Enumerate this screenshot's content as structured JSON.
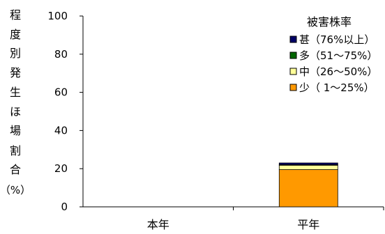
{
  "chart_data": {
    "type": "bar",
    "stacked": true,
    "title": "",
    "xlabel": "",
    "ylabel": "程度別発生ほ場割合（%）",
    "ylabel_chars": [
      "程",
      "度",
      "別",
      "発",
      "生",
      "ほ",
      "場",
      "割",
      "合",
      "（%）"
    ],
    "categories": [
      "本年",
      "平年"
    ],
    "ylim": [
      0,
      100
    ],
    "yticks": [
      0,
      20,
      40,
      60,
      80,
      100
    ],
    "grid": false,
    "legend_position": "top-right",
    "legend_title": "被害株率",
    "series": [
      {
        "name": "少（ 1〜25%）",
        "color": "#ff9900",
        "values": [
          0,
          19.5
        ]
      },
      {
        "name": "中（26〜50%）",
        "color": "#ffff99",
        "values": [
          0,
          2.3
        ]
      },
      {
        "name": "多（51〜75%）",
        "color": "#006600",
        "values": [
          0,
          0.3
        ]
      },
      {
        "name": "甚（76%以上）",
        "color": "#000066",
        "values": [
          0,
          0.9
        ]
      }
    ]
  }
}
